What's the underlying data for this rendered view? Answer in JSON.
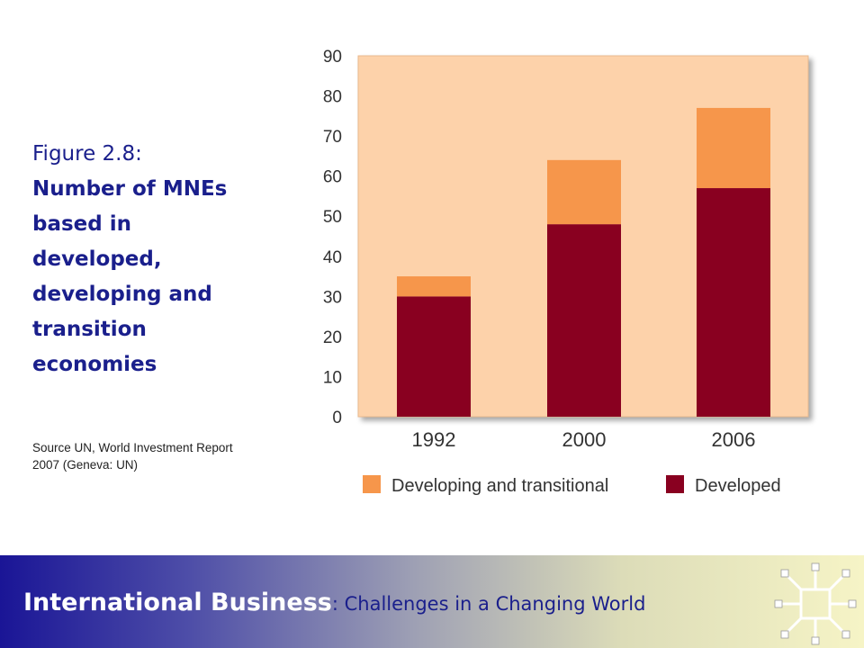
{
  "caption": {
    "figure_label": "Figure 2.8:",
    "title_lines": [
      "Number of MNEs",
      "based in",
      "developed,",
      "developing and",
      "transition",
      "economies"
    ],
    "source_lines": [
      "Source UN, World Investment Report",
      "2007 (Geneva: UN)"
    ]
  },
  "footer": {
    "main": "International Business",
    "separator": ":",
    "sub": " Challenges in a Changing World"
  },
  "colors": {
    "plot_bg": "#fdd2aa",
    "developing": "#f6964b",
    "developed": "#890020",
    "caption_text": "#1a1f8c"
  },
  "chart_data": {
    "type": "bar",
    "stacked": true,
    "categories": [
      "1992",
      "2000",
      "2006"
    ],
    "series": [
      {
        "name": "Developed",
        "values": [
          30,
          48,
          57
        ],
        "color": "#890020"
      },
      {
        "name": "Developing and transitional",
        "values": [
          5,
          16,
          20
        ],
        "color": "#f6964b"
      }
    ],
    "title": "",
    "xlabel": "",
    "ylabel": "",
    "ylim": [
      0,
      90
    ],
    "yticks": [
      0,
      10,
      20,
      30,
      40,
      50,
      60,
      70,
      80,
      90
    ],
    "grid": false,
    "legend_position": "bottom",
    "legend_order": [
      "Developing and transitional",
      "Developed"
    ]
  }
}
